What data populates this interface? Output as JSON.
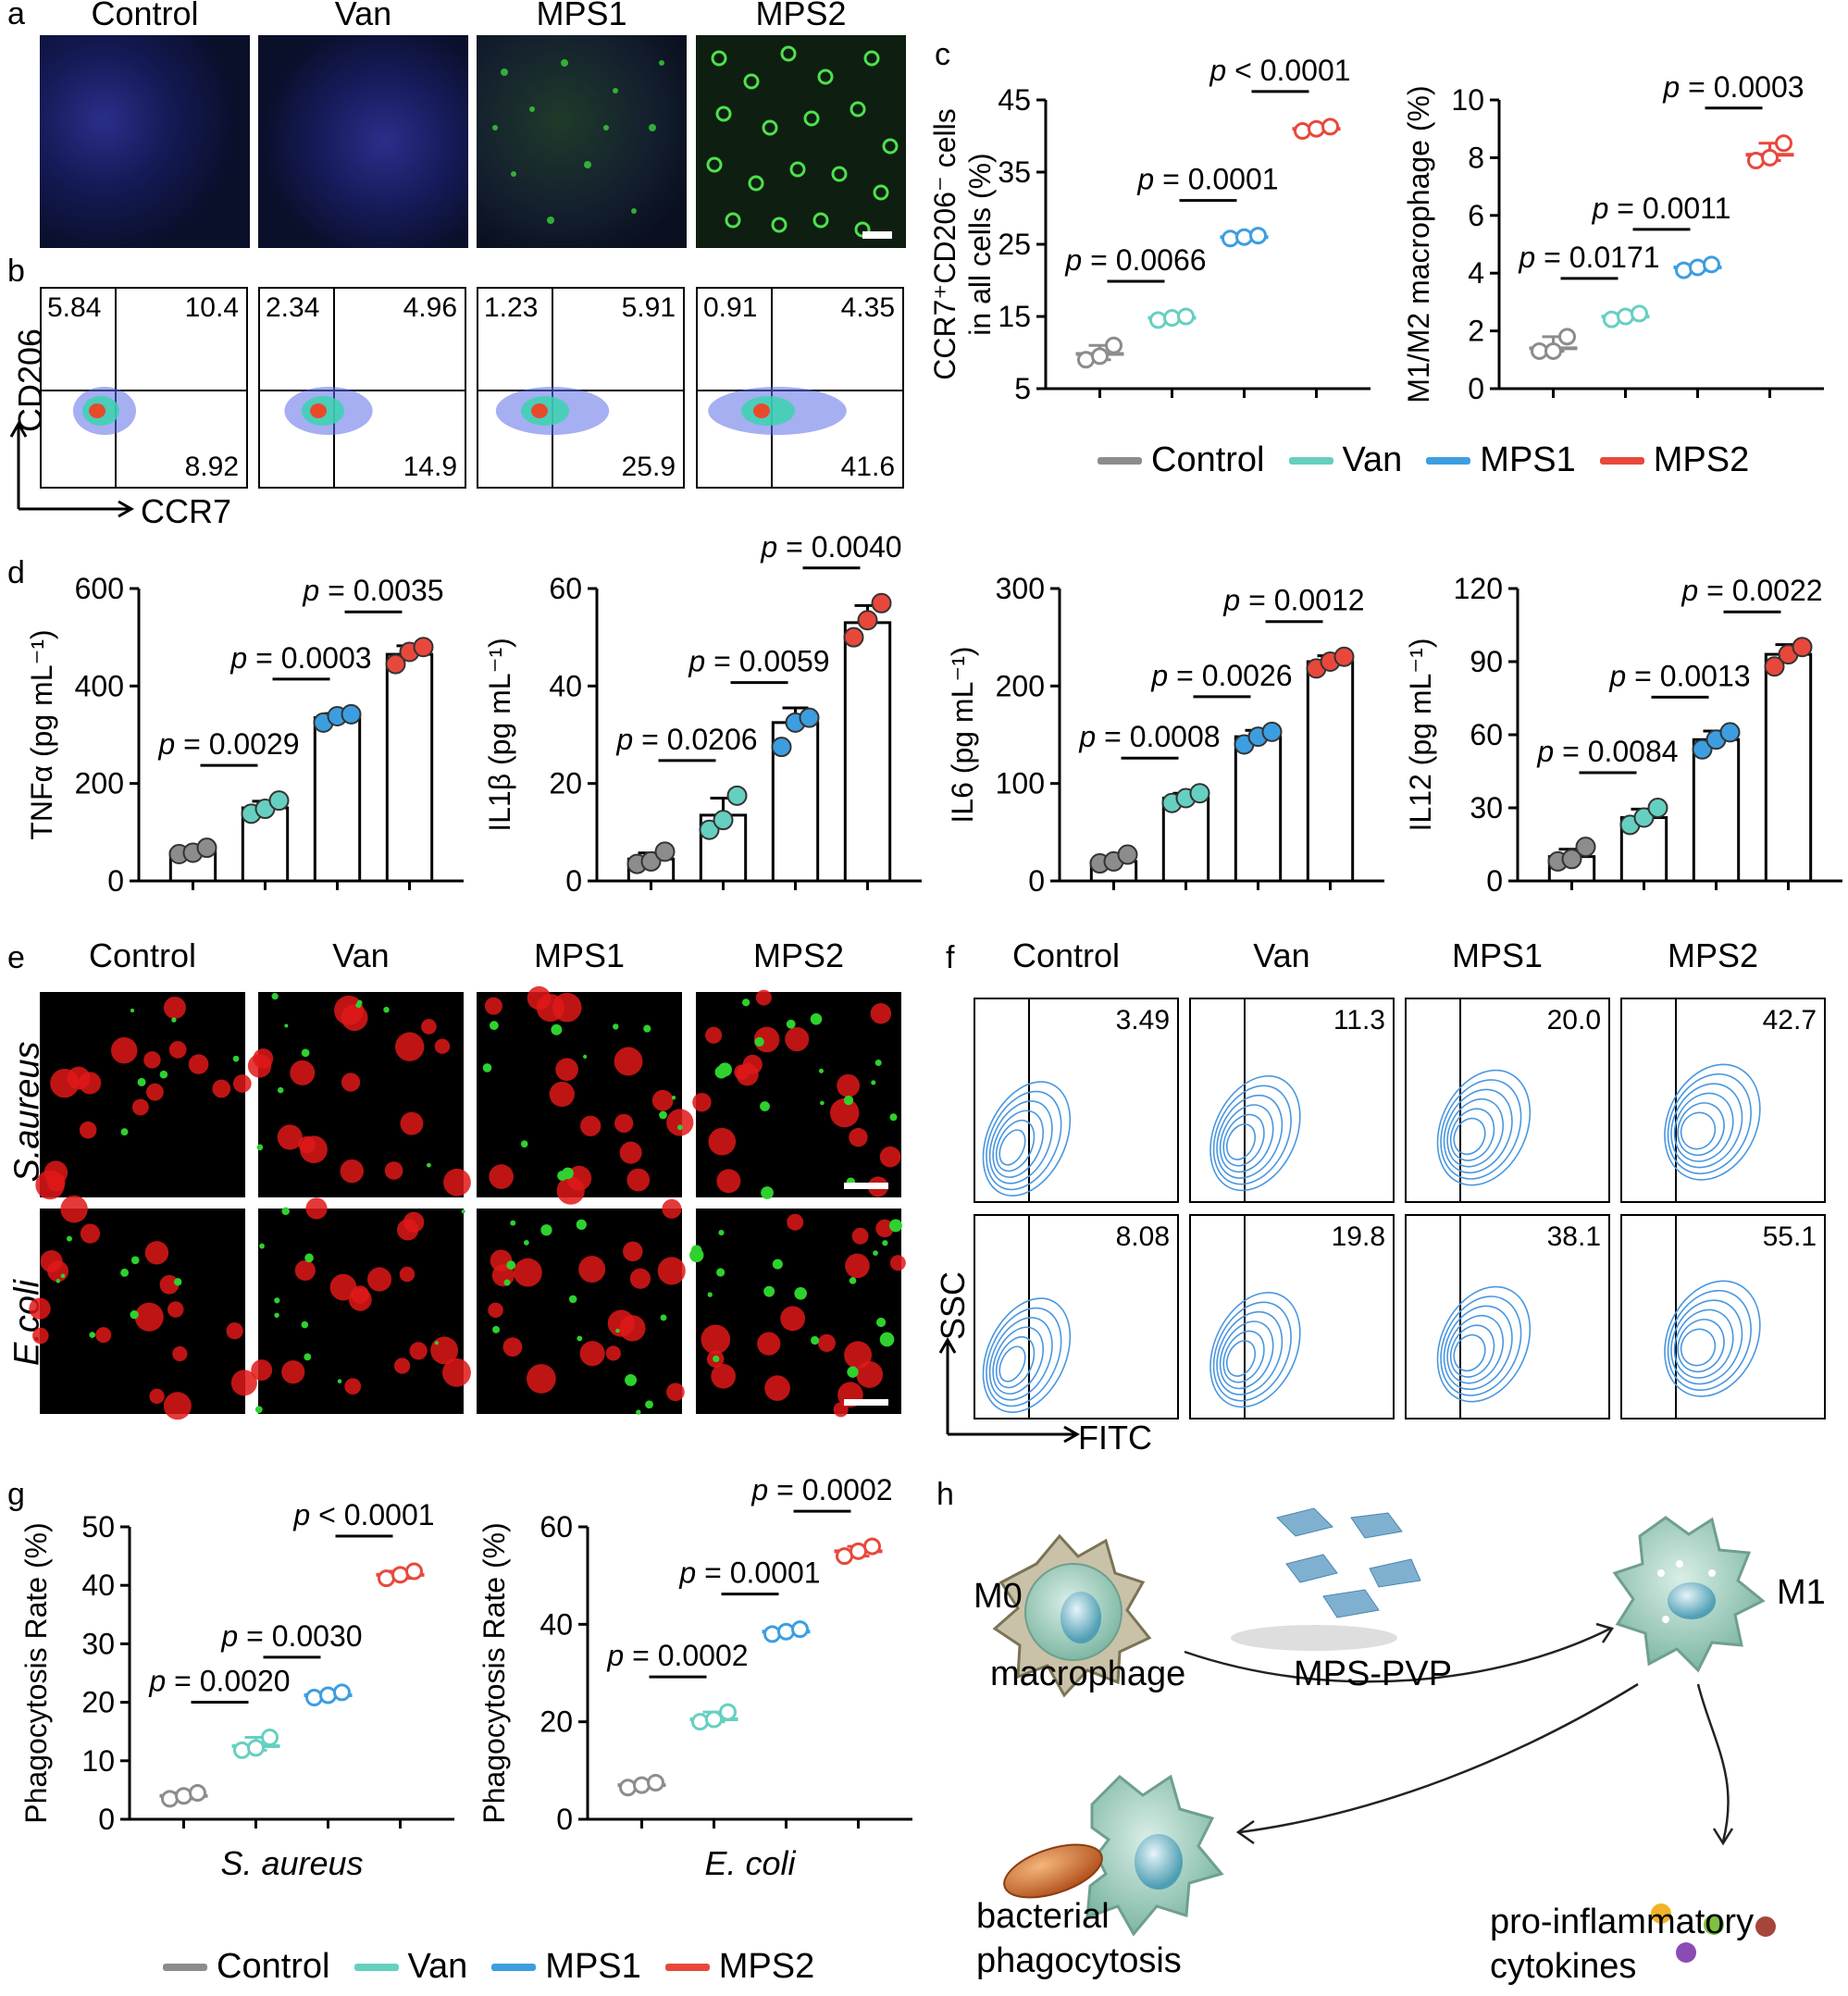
{
  "colors": {
    "Control": "#8c8c8c",
    "Van": "#66d0c0",
    "MPS1": "#3c9ee0",
    "MPS2": "#e8483c"
  },
  "groups": [
    "Control",
    "Van",
    "MPS1",
    "MPS2"
  ],
  "panels": {
    "a": {
      "label": "a",
      "columns": [
        "Control",
        "Van",
        "MPS1",
        "MPS2"
      ]
    },
    "b": {
      "label": "b",
      "y_label": "CD206",
      "x_label": "CCR7",
      "quadrants": [
        {
          "ul": "5.84",
          "ur": "10.4",
          "lr": "8.92"
        },
        {
          "ul": "2.34",
          "ur": "4.96",
          "lr": "14.9"
        },
        {
          "ul": "1.23",
          "ur": "5.91",
          "lr": "25.9"
        },
        {
          "ul": "0.91",
          "ur": "4.35",
          "lr": "41.6"
        }
      ]
    },
    "c": {
      "label": "c"
    },
    "d": {
      "label": "d"
    },
    "e": {
      "label": "e",
      "columns": [
        "Control",
        "Van",
        "MPS1",
        "MPS2"
      ],
      "rows": [
        "S.aureus",
        "E.coli"
      ]
    },
    "f": {
      "label": "f",
      "columns": [
        "Control",
        "Van",
        "MPS1",
        "MPS2"
      ],
      "y_label": "SSC",
      "x_label": "FITC",
      "row1": [
        "3.49",
        "11.3",
        "20.0",
        "42.7"
      ],
      "row2": [
        "8.08",
        "19.8",
        "38.1",
        "55.1"
      ]
    },
    "g": {
      "label": "g"
    },
    "h": {
      "label": "h",
      "m0": "M0",
      "m1": "M1",
      "macrophage": "macrophage",
      "agent": "MPS-PVP",
      "phago_line1": "bacterial",
      "phago_line2": "phagocytosis",
      "cyto_line1": "pro-inflammatory",
      "cyto_line2": "cytokines"
    }
  },
  "legend": [
    "Control",
    "Van",
    "MPS1",
    "MPS2"
  ],
  "chart_data": [
    {
      "id": "c1",
      "type": "scatter",
      "ylabel": "CCR7⁺CD206⁻ cells in all cells (%)",
      "ylim": [
        5,
        45
      ],
      "yticks": [
        5,
        15,
        25,
        35,
        45
      ],
      "categories": [
        "Control",
        "Van",
        "MPS1",
        "MPS2"
      ],
      "values": [
        9.8,
        14.8,
        26.0,
        41.0
      ],
      "points": [
        [
          9.0,
          9.5,
          11.0
        ],
        [
          14.5,
          14.8,
          15.0
        ],
        [
          25.8,
          26.0,
          26.2
        ],
        [
          40.7,
          41.0,
          41.3
        ]
      ],
      "pvalues": [
        "p = 0.0066",
        "p = 0.0001",
        "p < 0.0001"
      ]
    },
    {
      "id": "c2",
      "type": "scatter",
      "ylabel": "M1/M2 macrophage (%)",
      "ylim": [
        0,
        10
      ],
      "yticks": [
        0,
        2,
        4,
        6,
        8,
        10
      ],
      "categories": [
        "Control",
        "Van",
        "MPS1",
        "MPS2"
      ],
      "values": [
        1.4,
        2.5,
        4.2,
        8.1
      ],
      "points": [
        [
          1.3,
          1.3,
          1.8
        ],
        [
          2.4,
          2.5,
          2.6
        ],
        [
          4.1,
          4.2,
          4.3
        ],
        [
          7.9,
          8.0,
          8.5
        ]
      ],
      "pvalues": [
        "p = 0.0171",
        "p = 0.0011",
        "p = 0.0003"
      ]
    },
    {
      "id": "d1",
      "type": "bar",
      "ylabel": "TNFα (pg mL⁻¹)",
      "ylim": [
        0,
        600
      ],
      "yticks": [
        0,
        200,
        400,
        600
      ],
      "categories": [
        "Control",
        "Van",
        "MPS1",
        "MPS2"
      ],
      "values": [
        60,
        150,
        335,
        465
      ],
      "points": [
        [
          55,
          58,
          68
        ],
        [
          138,
          148,
          165
        ],
        [
          325,
          338,
          342
        ],
        [
          445,
          470,
          480
        ]
      ],
      "pvalues": [
        "p = 0.0029",
        "p = 0.0003",
        "p = 0.0035"
      ]
    },
    {
      "id": "d2",
      "type": "bar",
      "ylabel": "IL1β (pg mL⁻¹)",
      "ylim": [
        0,
        60
      ],
      "yticks": [
        0,
        20,
        40,
        60
      ],
      "categories": [
        "Control",
        "Van",
        "MPS1",
        "MPS2"
      ],
      "values": [
        4.5,
        13.5,
        32.5,
        53
      ],
      "points": [
        [
          3.5,
          4,
          6
        ],
        [
          10.5,
          12.5,
          17.5
        ],
        [
          27.5,
          32.5,
          33.5
        ],
        [
          50,
          53.5,
          57
        ]
      ],
      "pvalues": [
        "p = 0.0206",
        "p = 0.0059",
        "p = 0.0040"
      ]
    },
    {
      "id": "d3",
      "type": "bar",
      "ylabel": "IL6 (pg mL⁻¹)",
      "ylim": [
        0,
        300
      ],
      "yticks": [
        0,
        100,
        200,
        300
      ],
      "categories": [
        "Control",
        "Van",
        "MPS1",
        "MPS2"
      ],
      "values": [
        20,
        85,
        148,
        225
      ],
      "points": [
        [
          18,
          20,
          27
        ],
        [
          80,
          85,
          90
        ],
        [
          140,
          148,
          153
        ],
        [
          218,
          225,
          230
        ]
      ],
      "pvalues": [
        "p = 0.0008",
        "p = 0.0026",
        "p = 0.0012"
      ]
    },
    {
      "id": "d4",
      "type": "bar",
      "ylabel": "IL12 (pg mL⁻¹)",
      "ylim": [
        0,
        120
      ],
      "yticks": [
        0,
        30,
        60,
        90,
        120
      ],
      "categories": [
        "Control",
        "Van",
        "MPS1",
        "MPS2"
      ],
      "values": [
        10,
        26,
        58,
        93
      ],
      "points": [
        [
          8,
          9,
          14
        ],
        [
          23,
          26,
          30
        ],
        [
          54,
          58,
          61
        ],
        [
          88,
          93,
          96
        ]
      ],
      "pvalues": [
        "p = 0.0084",
        "p = 0.0013",
        "p = 0.0022"
      ]
    },
    {
      "id": "g1",
      "type": "scatter",
      "ylabel": "Phagocytosis Rate (%)",
      "xlabel": "S. aureus",
      "ylim": [
        0,
        50
      ],
      "yticks": [
        0,
        10,
        20,
        30,
        40,
        50
      ],
      "categories": [
        "Control",
        "Van",
        "MPS1",
        "MPS2"
      ],
      "values": [
        4.0,
        12.5,
        21.2,
        41.8
      ],
      "points": [
        [
          3.5,
          4.0,
          4.5
        ],
        [
          11.8,
          12.2,
          14.0
        ],
        [
          20.8,
          21.2,
          21.7
        ],
        [
          41.2,
          41.8,
          42.4
        ]
      ],
      "pvalues": [
        "p = 0.0020",
        "p = 0.0030",
        "p < 0.0001"
      ]
    },
    {
      "id": "g2",
      "type": "scatter",
      "ylabel": "Phagocytosis Rate (%)",
      "xlabel": "E. coli",
      "ylim": [
        0,
        60
      ],
      "yticks": [
        0,
        20,
        40,
        60
      ],
      "categories": [
        "Control",
        "Van",
        "MPS1",
        "MPS2"
      ],
      "values": [
        7.0,
        20.5,
        38.5,
        55.0
      ],
      "points": [
        [
          6.5,
          7.0,
          7.5
        ],
        [
          20.0,
          20.5,
          22.0
        ],
        [
          38.0,
          38.5,
          39.0
        ],
        [
          54.0,
          55.0,
          56.0
        ]
      ],
      "pvalues": [
        "p = 0.0002",
        "p = 0.0001",
        "p = 0.0002"
      ]
    }
  ]
}
